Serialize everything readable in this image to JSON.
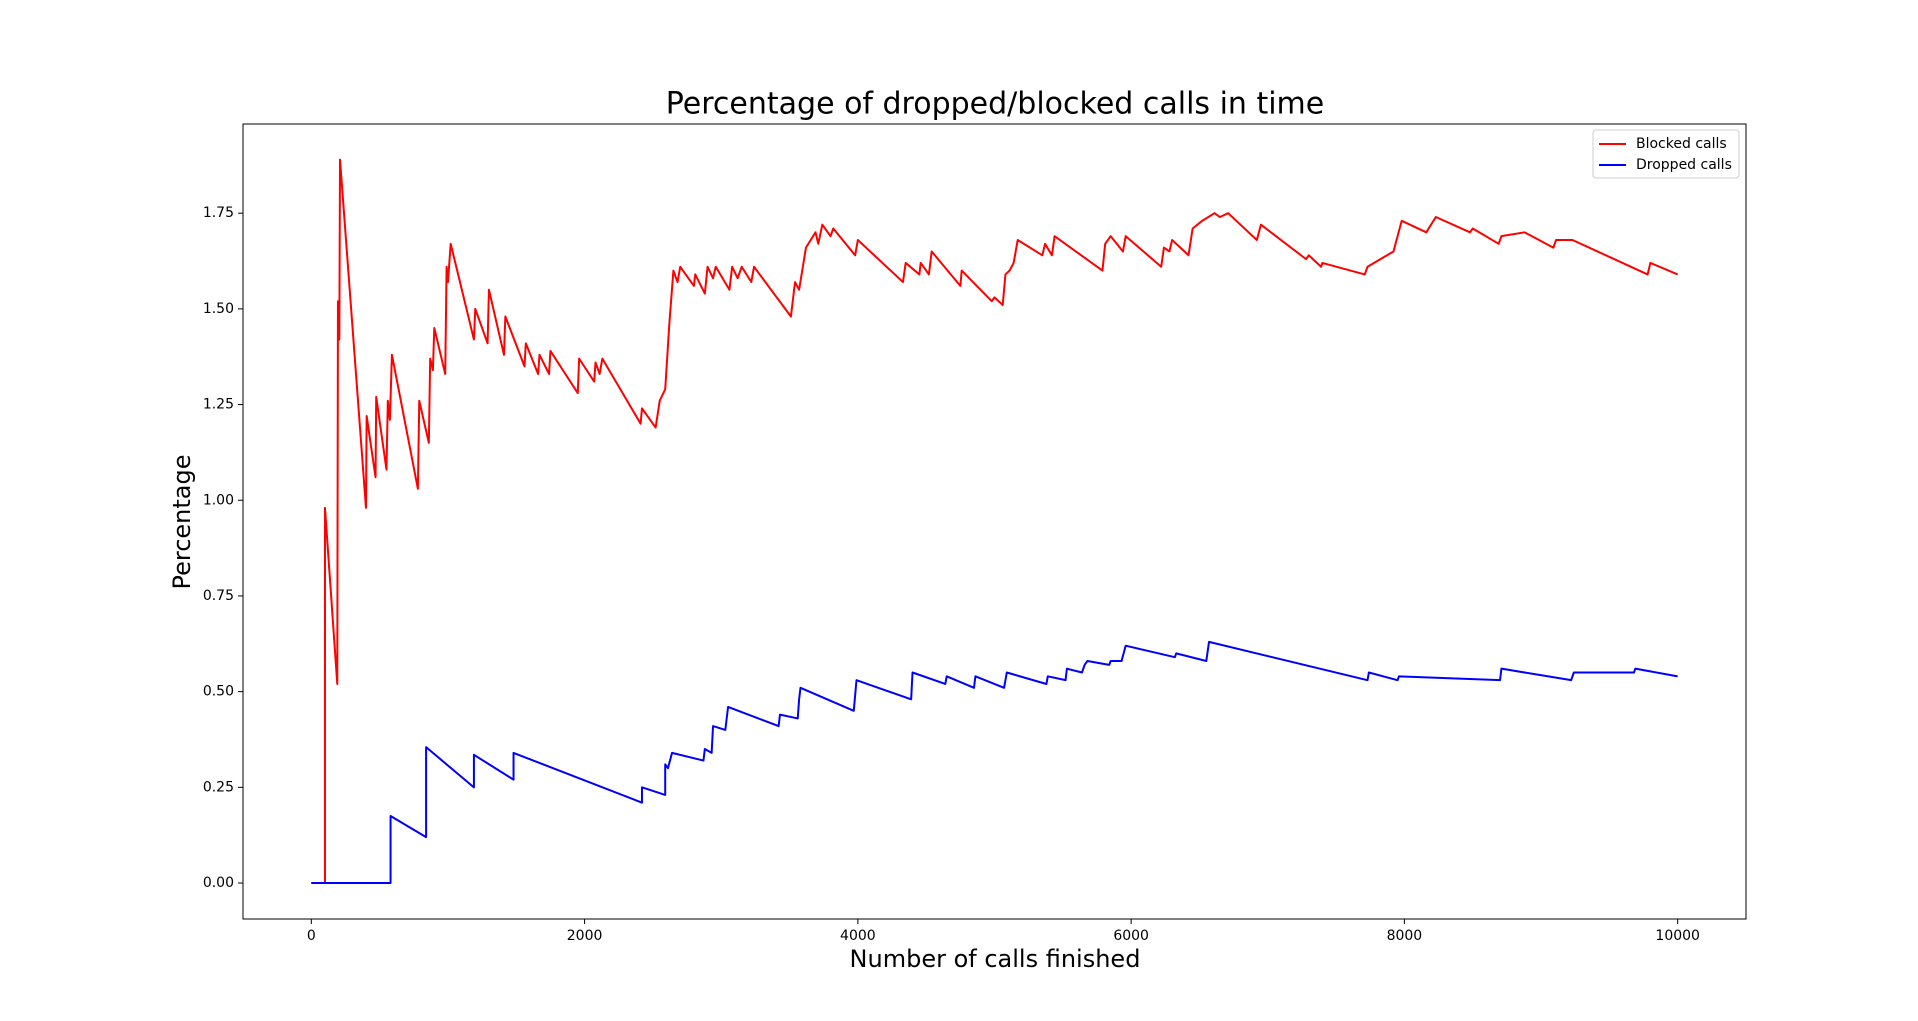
{
  "chart_data": {
    "type": "line",
    "title": "Percentage of dropped/blocked calls in time",
    "x_label": "Number of calls finished",
    "y_label": "Percentage",
    "xlim": [
      -500,
      10500
    ],
    "ylim": [
      -0.094,
      1.983
    ],
    "xticks": [
      0,
      2000,
      4000,
      6000,
      8000,
      10000
    ],
    "yticks": [
      {
        "value": 0,
        "label": "0.00"
      },
      {
        "value": 0.25,
        "label": "0.25"
      },
      {
        "value": 0.5,
        "label": "0.50"
      },
      {
        "value": 0.75,
        "label": "0.75"
      },
      {
        "value": 1,
        "label": "1.00"
      },
      {
        "value": 1.25,
        "label": "1.25"
      },
      {
        "value": 1.5,
        "label": "1.50"
      },
      {
        "value": 1.75,
        "label": "1.75"
      }
    ],
    "legend": "upper right",
    "series": [
      {
        "name": "Blocked calls",
        "color": "#ff0000",
        "x": [
          0,
          100,
          100,
          190,
          195,
          205,
          210,
          400,
          405,
          470,
          475,
          550,
          560,
          575,
          590,
          780,
          790,
          860,
          870,
          890,
          900,
          980,
          990,
          1000,
          1020,
          1190,
          1200,
          1290,
          1300,
          1410,
          1420,
          1560,
          1570,
          1660,
          1670,
          1740,
          1750,
          1950,
          1960,
          2070,
          2080,
          2110,
          2130,
          2410,
          2420,
          2520,
          2550,
          2590,
          2620,
          2650,
          2680,
          2700,
          2800,
          2810,
          2880,
          2900,
          2940,
          2960,
          3060,
          3080,
          3120,
          3150,
          3220,
          3240,
          3510,
          3540,
          3570,
          3620,
          3690,
          3710,
          3740,
          3800,
          3820,
          3980,
          4000,
          4330,
          4350,
          4450,
          4460,
          4520,
          4540,
          4750,
          4760,
          4980,
          5000,
          5060,
          5080,
          5110,
          5140,
          5170,
          5350,
          5370,
          5420,
          5440,
          5790,
          5810,
          5850,
          5940,
          5960,
          6220,
          6240,
          6280,
          6300,
          6420,
          6450,
          6520,
          6610,
          6650,
          6710,
          6920,
          6950,
          7280,
          7300,
          7390,
          7400,
          7710,
          7730,
          7920,
          7980,
          8160,
          8230,
          8480,
          8500,
          8690,
          8710,
          8880,
          9090,
          9110,
          9230,
          9780,
          9800,
          10000
        ],
        "values": [
          0,
          0,
          0.98,
          0.52,
          1.52,
          1.42,
          1.89,
          0.98,
          1.22,
          1.06,
          1.27,
          1.08,
          1.26,
          1.21,
          1.38,
          1.03,
          1.26,
          1.15,
          1.37,
          1.34,
          1.45,
          1.33,
          1.61,
          1.57,
          1.67,
          1.42,
          1.5,
          1.41,
          1.55,
          1.38,
          1.48,
          1.35,
          1.41,
          1.33,
          1.38,
          1.33,
          1.39,
          1.28,
          1.37,
          1.31,
          1.36,
          1.33,
          1.37,
          1.2,
          1.24,
          1.19,
          1.26,
          1.29,
          1.46,
          1.6,
          1.57,
          1.61,
          1.56,
          1.59,
          1.54,
          1.61,
          1.58,
          1.61,
          1.55,
          1.61,
          1.58,
          1.61,
          1.57,
          1.61,
          1.48,
          1.57,
          1.55,
          1.66,
          1.7,
          1.67,
          1.72,
          1.69,
          1.71,
          1.64,
          1.68,
          1.57,
          1.62,
          1.59,
          1.62,
          1.59,
          1.65,
          1.56,
          1.6,
          1.52,
          1.53,
          1.51,
          1.59,
          1.6,
          1.62,
          1.68,
          1.64,
          1.67,
          1.64,
          1.69,
          1.6,
          1.67,
          1.69,
          1.65,
          1.69,
          1.61,
          1.66,
          1.65,
          1.68,
          1.64,
          1.71,
          1.73,
          1.75,
          1.74,
          1.75,
          1.68,
          1.72,
          1.63,
          1.64,
          1.61,
          1.62,
          1.59,
          1.61,
          1.65,
          1.73,
          1.7,
          1.74,
          1.7,
          1.71,
          1.67,
          1.69,
          1.7,
          1.66,
          1.68,
          1.68,
          1.59,
          1.62,
          1.59
        ]
      },
      {
        "name": "Dropped calls",
        "color": "#0000ff",
        "x": [
          0,
          580,
          580,
          840,
          840,
          1190,
          1190,
          1480,
          1480,
          2420,
          2420,
          2590,
          2590,
          2610,
          2640,
          2870,
          2880,
          2930,
          2940,
          3030,
          3050,
          3420,
          3430,
          3560,
          3570,
          3580,
          3970,
          3990,
          4390,
          4400,
          4640,
          4650,
          4850,
          4860,
          5070,
          5090,
          5380,
          5390,
          5520,
          5530,
          5640,
          5660,
          5680,
          5840,
          5850,
          5930,
          5960,
          6320,
          6330,
          6550,
          6570,
          7730,
          7740,
          7950,
          7960,
          8700,
          8710,
          9220,
          9240,
          9680,
          9690,
          10000
        ],
        "values": [
          0,
          0,
          0.175,
          0.12,
          0.355,
          0.25,
          0.335,
          0.27,
          0.34,
          0.21,
          0.25,
          0.23,
          0.31,
          0.3,
          0.34,
          0.32,
          0.35,
          0.34,
          0.41,
          0.4,
          0.46,
          0.41,
          0.44,
          0.43,
          0.48,
          0.51,
          0.45,
          0.53,
          0.48,
          0.55,
          0.52,
          0.54,
          0.51,
          0.54,
          0.51,
          0.55,
          0.52,
          0.54,
          0.53,
          0.56,
          0.55,
          0.57,
          0.58,
          0.57,
          0.58,
          0.58,
          0.62,
          0.59,
          0.6,
          0.58,
          0.63,
          0.53,
          0.55,
          0.53,
          0.54,
          0.53,
          0.56,
          0.53,
          0.55,
          0.55,
          0.56,
          0.54
        ]
      }
    ]
  }
}
